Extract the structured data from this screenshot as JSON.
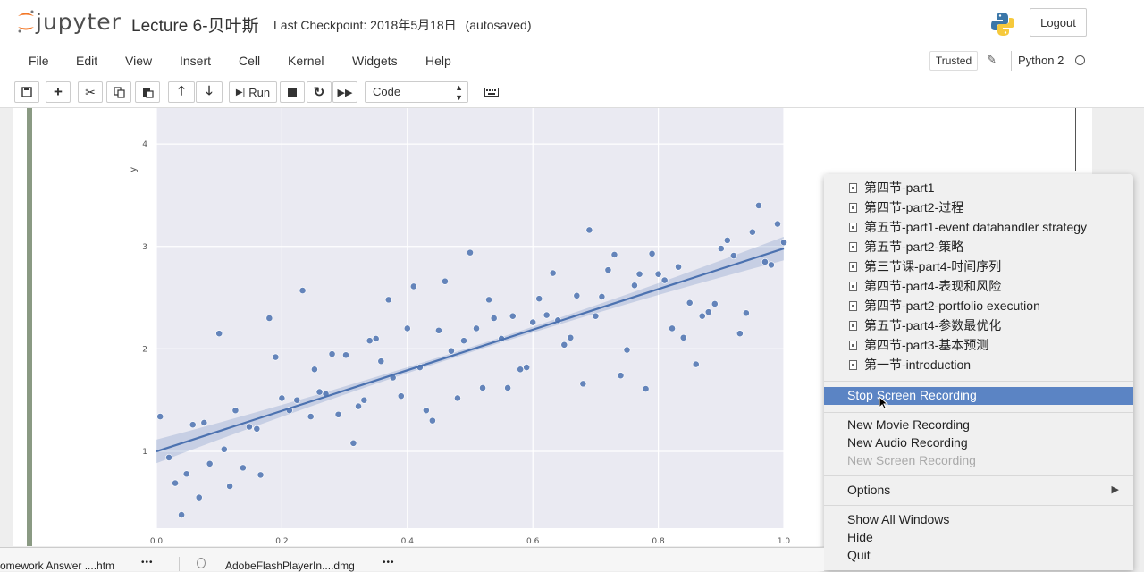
{
  "header": {
    "logo_text": "jupyter",
    "notebook_name": "Lecture 6-贝叶斯",
    "checkpoint_label": "Last Checkpoint: 2018年5月18日",
    "autosave_status": "(autosaved)",
    "logout_label": "Logout"
  },
  "menubar": {
    "items": [
      "File",
      "Edit",
      "View",
      "Insert",
      "Cell",
      "Kernel",
      "Widgets",
      "Help"
    ],
    "trusted_label": "Trusted",
    "kernel_name": "Python 2"
  },
  "toolbar": {
    "run_label": "Run",
    "cell_type": "Code"
  },
  "chart_data": {
    "type": "scatter",
    "xlabel": "",
    "ylabel": "y",
    "xlim": [
      0.0,
      1.0
    ],
    "ylim": [
      0.25,
      4.35
    ],
    "x_ticks": [
      "0.0",
      "0.2",
      "0.4",
      "0.6",
      "0.8",
      "1.0"
    ],
    "y_ticks": [
      "1",
      "2",
      "3",
      "4"
    ],
    "grid": true,
    "regression_line": {
      "x": [
        0.0,
        1.0
      ],
      "y": [
        1.0,
        2.98
      ]
    },
    "points": [
      [
        0.006,
        1.34
      ],
      [
        0.02,
        0.94
      ],
      [
        0.03,
        0.69
      ],
      [
        0.04,
        0.38
      ],
      [
        0.048,
        0.78
      ],
      [
        0.058,
        1.26
      ],
      [
        0.068,
        0.55
      ],
      [
        0.076,
        1.28
      ],
      [
        0.085,
        0.88
      ],
      [
        0.1,
        2.15
      ],
      [
        0.108,
        1.02
      ],
      [
        0.117,
        0.66
      ],
      [
        0.126,
        1.4
      ],
      [
        0.138,
        0.84
      ],
      [
        0.148,
        1.24
      ],
      [
        0.16,
        1.22
      ],
      [
        0.166,
        0.77
      ],
      [
        0.18,
        2.3
      ],
      [
        0.19,
        1.92
      ],
      [
        0.2,
        1.52
      ],
      [
        0.212,
        1.4
      ],
      [
        0.224,
        1.5
      ],
      [
        0.233,
        2.57
      ],
      [
        0.246,
        1.34
      ],
      [
        0.252,
        1.8
      ],
      [
        0.26,
        1.58
      ],
      [
        0.27,
        1.56
      ],
      [
        0.28,
        1.95
      ],
      [
        0.29,
        1.36
      ],
      [
        0.302,
        1.94
      ],
      [
        0.314,
        1.08
      ],
      [
        0.322,
        1.44
      ],
      [
        0.331,
        1.5
      ],
      [
        0.34,
        2.08
      ],
      [
        0.35,
        2.1
      ],
      [
        0.358,
        1.88
      ],
      [
        0.37,
        2.48
      ],
      [
        0.377,
        1.72
      ],
      [
        0.39,
        1.54
      ],
      [
        0.4,
        2.2
      ],
      [
        0.41,
        2.61
      ],
      [
        0.42,
        1.82
      ],
      [
        0.43,
        1.4
      ],
      [
        0.44,
        1.3
      ],
      [
        0.45,
        2.18
      ],
      [
        0.46,
        2.66
      ],
      [
        0.47,
        1.98
      ],
      [
        0.48,
        1.52
      ],
      [
        0.49,
        2.08
      ],
      [
        0.5,
        2.94
      ],
      [
        0.51,
        2.2
      ],
      [
        0.52,
        1.62
      ],
      [
        0.53,
        2.48
      ],
      [
        0.538,
        2.3
      ],
      [
        0.55,
        2.1
      ],
      [
        0.56,
        1.62
      ],
      [
        0.568,
        2.32
      ],
      [
        0.58,
        1.8
      ],
      [
        0.59,
        1.82
      ],
      [
        0.6,
        2.26
      ],
      [
        0.61,
        2.49
      ],
      [
        0.622,
        2.33
      ],
      [
        0.632,
        2.74
      ],
      [
        0.64,
        2.28
      ],
      [
        0.65,
        2.04
      ],
      [
        0.66,
        2.11
      ],
      [
        0.67,
        2.52
      ],
      [
        0.68,
        1.66
      ],
      [
        0.69,
        3.16
      ],
      [
        0.7,
        2.32
      ],
      [
        0.71,
        2.51
      ],
      [
        0.72,
        2.77
      ],
      [
        0.73,
        2.92
      ],
      [
        0.74,
        1.74
      ],
      [
        0.75,
        1.99
      ],
      [
        0.762,
        2.62
      ],
      [
        0.77,
        2.73
      ],
      [
        0.78,
        1.61
      ],
      [
        0.79,
        2.93
      ],
      [
        0.8,
        2.73
      ],
      [
        0.81,
        2.67
      ],
      [
        0.822,
        2.2
      ],
      [
        0.832,
        2.8
      ],
      [
        0.84,
        2.11
      ],
      [
        0.85,
        2.45
      ],
      [
        0.86,
        1.85
      ],
      [
        0.87,
        2.32
      ],
      [
        0.88,
        2.36
      ],
      [
        0.89,
        2.44
      ],
      [
        0.9,
        2.98
      ],
      [
        0.91,
        3.06
      ],
      [
        0.92,
        2.91
      ],
      [
        0.93,
        2.15
      ],
      [
        0.94,
        2.35
      ],
      [
        0.95,
        3.14
      ],
      [
        0.96,
        3.4
      ],
      [
        0.97,
        2.85
      ],
      [
        0.98,
        2.82
      ],
      [
        0.99,
        3.22
      ],
      [
        1.0,
        3.04
      ]
    ]
  },
  "context_menu": {
    "windows": [
      "第四节-part1",
      "第四节-part2-过程",
      "第五节-part1-event datahandler strategy",
      "第五节-part2-策略",
      "第三节课-part4-时间序列",
      "第四节-part4-表现和风险",
      "第四节-part2-portfolio execution",
      "第五节-part4-参数最优化",
      "第四节-part3-基本预测",
      "第一节-introduction"
    ],
    "stop_recording": "Stop Screen Recording",
    "new_movie": "New Movie Recording",
    "new_audio": "New Audio Recording",
    "new_screen": "New Screen Recording",
    "options": "Options",
    "show_all": "Show All Windows",
    "hide": "Hide",
    "quit": "Quit"
  },
  "downloads": {
    "items": [
      "omework Answer ....htm",
      "AdobeFlashPlayerIn....dmg"
    ],
    "more": "•••"
  }
}
